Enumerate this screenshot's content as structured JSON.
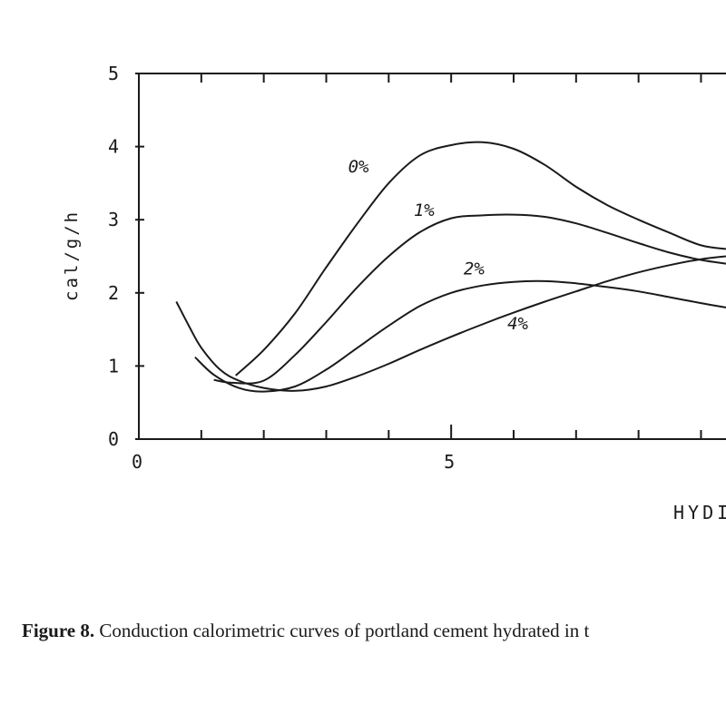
{
  "caption": {
    "label": "Figure 8.",
    "text": " Conduction calorimetric curves of portland cement hydrated in t"
  },
  "chart_data": {
    "type": "line",
    "xlabel": "HYDI",
    "ylabel": "cal/g/h",
    "xlim": [
      0,
      9.4
    ],
    "ylim": [
      0,
      5
    ],
    "x_ticks": [
      0,
      5
    ],
    "y_ticks": [
      0,
      1,
      2,
      3,
      4,
      5
    ],
    "series": [
      {
        "name": "0%",
        "x": [
          1.55,
          2.0,
          2.5,
          3.0,
          3.5,
          4.0,
          4.5,
          5.0,
          5.5,
          6.0,
          6.5,
          7.0,
          7.5,
          8.0,
          8.5,
          9.0,
          9.4
        ],
        "y": [
          0.87,
          1.22,
          1.72,
          2.35,
          2.95,
          3.5,
          3.88,
          4.02,
          4.06,
          3.97,
          3.75,
          3.45,
          3.2,
          3.0,
          2.82,
          2.65,
          2.6
        ]
      },
      {
        "name": "1%",
        "x": [
          1.2,
          1.5,
          2.0,
          2.5,
          3.0,
          3.5,
          4.0,
          4.5,
          5.0,
          5.5,
          6.0,
          6.5,
          7.0,
          7.5,
          8.0,
          8.5,
          9.0,
          9.4
        ],
        "y": [
          0.81,
          0.77,
          0.8,
          1.15,
          1.6,
          2.08,
          2.5,
          2.83,
          3.02,
          3.06,
          3.07,
          3.04,
          2.95,
          2.82,
          2.68,
          2.55,
          2.45,
          2.4
        ]
      },
      {
        "name": "2%",
        "x": [
          0.9,
          1.2,
          1.6,
          2.0,
          2.5,
          3.0,
          3.5,
          4.0,
          4.5,
          5.0,
          5.5,
          6.0,
          6.5,
          7.0,
          7.5,
          8.0,
          8.5,
          9.0,
          9.4
        ],
        "y": [
          1.12,
          0.88,
          0.7,
          0.65,
          0.72,
          0.95,
          1.25,
          1.55,
          1.82,
          2.0,
          2.1,
          2.15,
          2.16,
          2.13,
          2.08,
          2.02,
          1.94,
          1.86,
          1.8
        ]
      },
      {
        "name": "4%",
        "x": [
          0.6,
          0.8,
          1.0,
          1.3,
          1.6,
          2.0,
          2.5,
          3.0,
          3.5,
          4.0,
          4.5,
          5.0,
          5.5,
          6.0,
          6.5,
          7.0,
          7.5,
          8.0,
          8.5,
          9.0,
          9.4
        ],
        "y": [
          1.88,
          1.55,
          1.25,
          0.95,
          0.8,
          0.7,
          0.66,
          0.72,
          0.86,
          1.03,
          1.22,
          1.4,
          1.57,
          1.73,
          1.88,
          2.02,
          2.16,
          2.28,
          2.38,
          2.46,
          2.5
        ]
      }
    ]
  }
}
